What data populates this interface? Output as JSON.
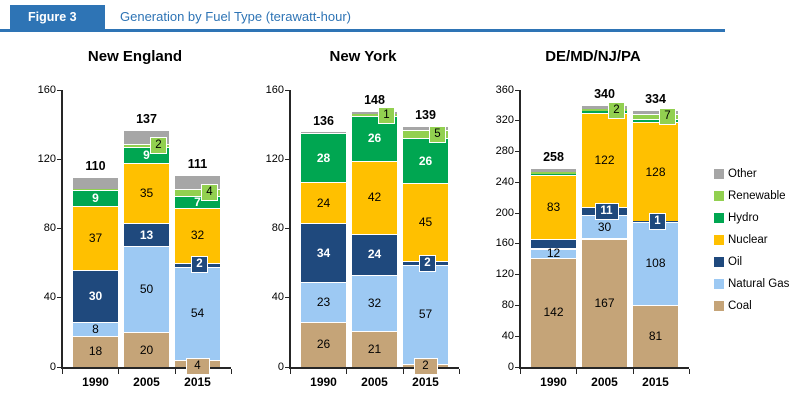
{
  "header": {
    "figure_label": "Figure 3",
    "title": "Generation by Fuel Type (terawatt-hour)",
    "accent_color": "#2E74B5"
  },
  "legend": {
    "position": "right",
    "items": [
      {
        "label": "Other",
        "color": "#A6A6A6"
      },
      {
        "label": "Renewable",
        "color": "#92D050"
      },
      {
        "label": "Hydro",
        "color": "#00A651"
      },
      {
        "label": "Nuclear",
        "color": "#FFC000"
      },
      {
        "label": "Oil",
        "color": "#1F497D"
      },
      {
        "label": "Natural Gas",
        "color": "#9DC9F3"
      },
      {
        "label": "Coal",
        "color": "#C5A478"
      }
    ]
  },
  "chart_data": {
    "type": "bar",
    "stacked": true,
    "unit": "terawatt-hour",
    "categories": [
      "1990",
      "2005",
      "2015"
    ],
    "stack_order_bottom_to_top": [
      "Coal",
      "Natural Gas",
      "Oil",
      "Nuclear",
      "Hydro",
      "Renewable",
      "Other"
    ],
    "fuel_colors": {
      "Coal": "#C5A478",
      "Natural Gas": "#9DC9F3",
      "Oil": "#1F497D",
      "Nuclear": "#FFC000",
      "Hydro": "#00A651",
      "Renewable": "#92D050",
      "Other": "#A6A6A6"
    },
    "label_text_colors": {
      "Oil": "#FFFFFF",
      "Hydro": "#FFFFFF",
      "default": "#000000"
    },
    "gridlines": false,
    "legend_position": "right",
    "panels": [
      {
        "title": "New England",
        "ylim": [
          0,
          160
        ],
        "ytick_step": 40,
        "totals": [
          110,
          137,
          111
        ],
        "series": [
          {
            "name": "Coal",
            "values": [
              18,
              20,
              4
            ],
            "display": [
              "inline",
              "inline",
              "below"
            ]
          },
          {
            "name": "Natural Gas",
            "values": [
              8,
              50,
              54
            ],
            "display": [
              "inline",
              "inline",
              "inline"
            ]
          },
          {
            "name": "Oil",
            "values": [
              30,
              13,
              2
            ],
            "display": [
              "inline",
              "inline",
              "side"
            ]
          },
          {
            "name": "Nuclear",
            "values": [
              37,
              35,
              32
            ],
            "display": [
              "inline",
              "inline",
              "inline"
            ]
          },
          {
            "name": "Hydro",
            "values": [
              9,
              9,
              7
            ],
            "display": [
              "inline",
              "inline",
              "inline"
            ]
          },
          {
            "name": "Renewable",
            "values": [
              1,
              2,
              4
            ],
            "display": [
              "none",
              "side",
              "side"
            ]
          },
          {
            "name": "Other",
            "values": [
              7,
              8,
              8
            ],
            "display": [
              "none",
              "none",
              "none"
            ]
          }
        ]
      },
      {
        "title": "New York",
        "ylim": [
          0,
          160
        ],
        "ytick_step": 40,
        "totals": [
          136,
          148,
          139
        ],
        "series": [
          {
            "name": "Coal",
            "values": [
              26,
              21,
              2
            ],
            "display": [
              "inline",
              "inline",
              "below"
            ]
          },
          {
            "name": "Natural Gas",
            "values": [
              23,
              32,
              57
            ],
            "display": [
              "inline",
              "inline",
              "inline"
            ]
          },
          {
            "name": "Oil",
            "values": [
              34,
              24,
              2
            ],
            "display": [
              "inline",
              "inline",
              "side"
            ]
          },
          {
            "name": "Nuclear",
            "values": [
              24,
              42,
              45
            ],
            "display": [
              "inline",
              "inline",
              "inline"
            ]
          },
          {
            "name": "Hydro",
            "values": [
              28,
              26,
              26
            ],
            "display": [
              "inline",
              "inline",
              "inline"
            ]
          },
          {
            "name": "Renewable",
            "values": [
              0,
              1,
              5
            ],
            "display": [
              "none",
              "side",
              "side"
            ]
          },
          {
            "name": "Other",
            "values": [
              1,
              2,
              2
            ],
            "display": [
              "none",
              "none",
              "none"
            ]
          }
        ]
      },
      {
        "title": "DE/MD/NJ/PA",
        "ylim": [
          0,
          360
        ],
        "ytick_step": 40,
        "totals": [
          258,
          340,
          334
        ],
        "series": [
          {
            "name": "Coal",
            "values": [
              142,
              167,
              81
            ],
            "display": [
              "inline",
              "inline",
              "inline"
            ]
          },
          {
            "name": "Natural Gas",
            "values": [
              12,
              30,
              108
            ],
            "display": [
              "inline",
              "inline",
              "inline"
            ]
          },
          {
            "name": "Oil",
            "values": [
              12,
              11,
              1
            ],
            "display": [
              "none",
              "side",
              "side"
            ]
          },
          {
            "name": "Nuclear",
            "values": [
              83,
              122,
              128
            ],
            "display": [
              "inline",
              "inline",
              "inline"
            ]
          },
          {
            "name": "Hydro",
            "values": [
              2,
              3,
              4
            ],
            "display": [
              "none",
              "none",
              "none"
            ]
          },
          {
            "name": "Renewable",
            "values": [
              2,
              2,
              7
            ],
            "display": [
              "none",
              "side",
              "side"
            ]
          },
          {
            "name": "Other",
            "values": [
              5,
              5,
              5
            ],
            "display": [
              "none",
              "none",
              "none"
            ]
          }
        ]
      }
    ]
  }
}
